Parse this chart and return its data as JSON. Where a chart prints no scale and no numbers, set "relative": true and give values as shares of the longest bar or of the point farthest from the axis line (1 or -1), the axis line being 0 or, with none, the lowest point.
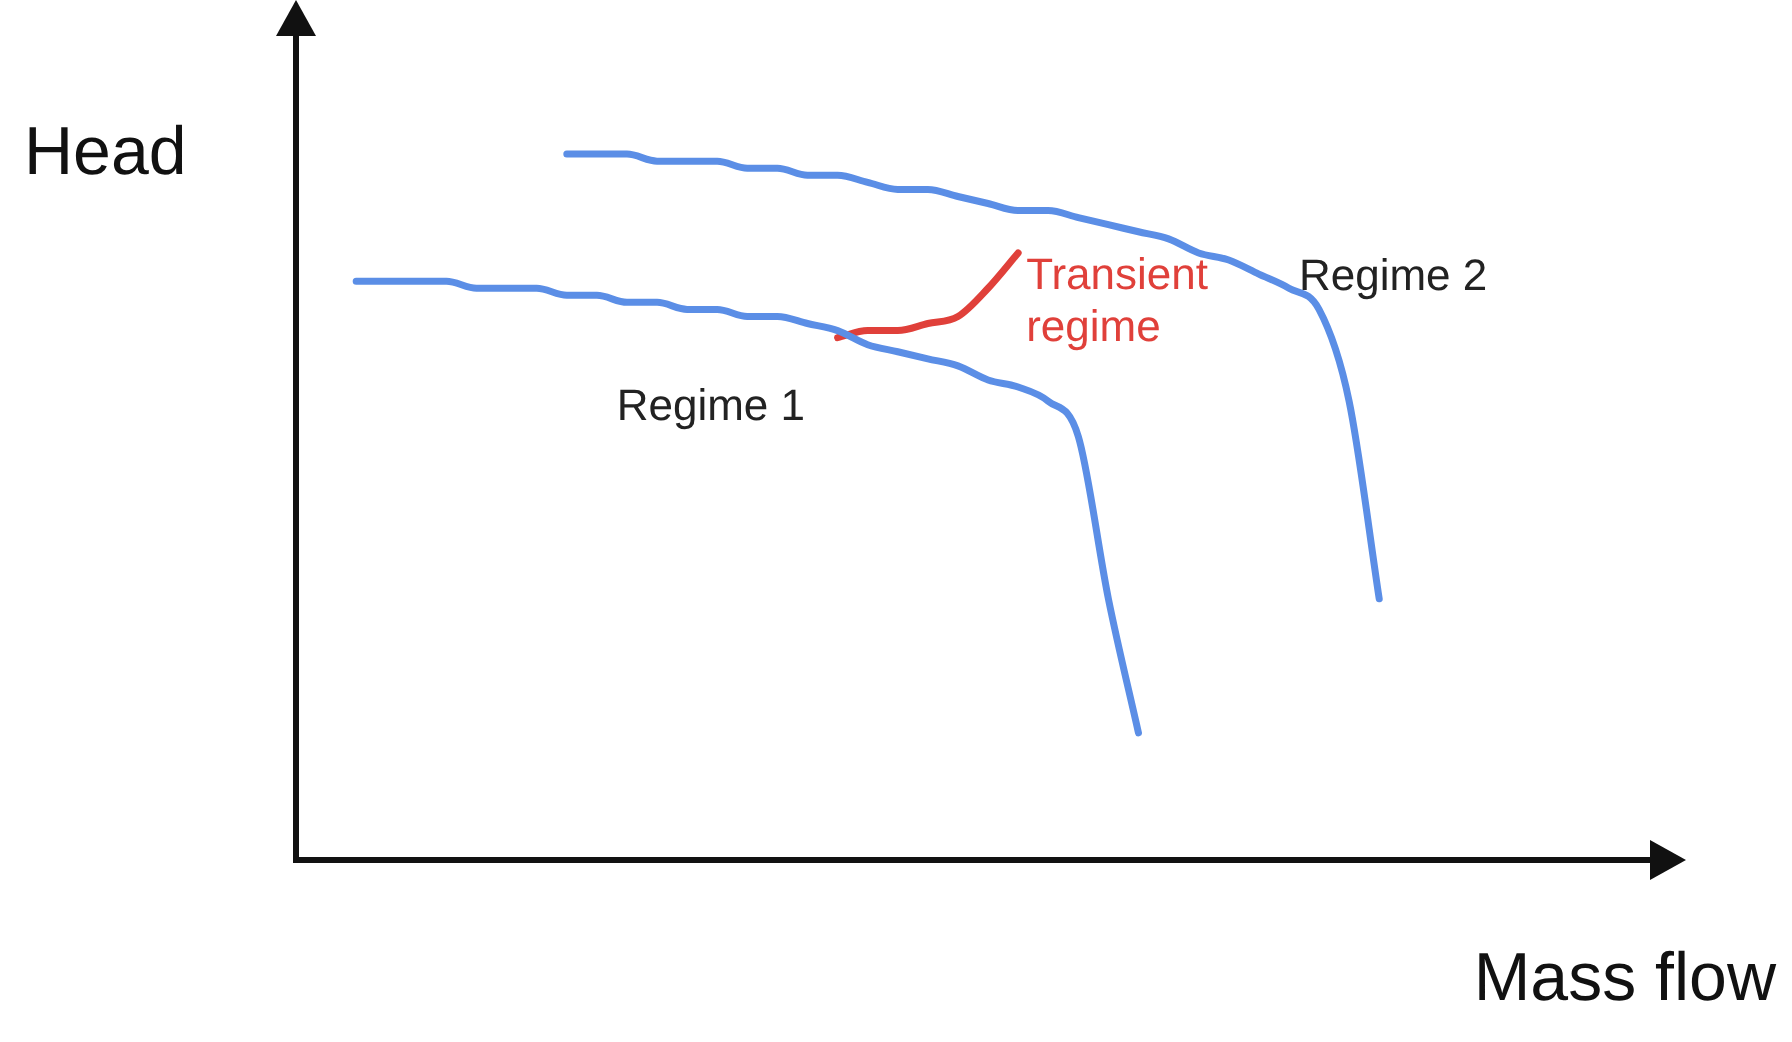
{
  "chart_data": {
    "type": "line",
    "relative": true,
    "xlabel": "Mass flow",
    "ylabel": "Head",
    "legend": false,
    "grid": false,
    "marker": "none",
    "line_style": "solid",
    "tick_labels": false,
    "categories": [
      null,
      null,
      null,
      null,
      null,
      null,
      null,
      null,
      null,
      null,
      null,
      null,
      null,
      null,
      null,
      null,
      null,
      null,
      null,
      null,
      null,
      null,
      null,
      null,
      null,
      null,
      null,
      null,
      null,
      null,
      null,
      null,
      null,
      null,
      null,
      null,
      null,
      null,
      null,
      null,
      null,
      null,
      null,
      null,
      null,
      null
    ],
    "series": [
      {
        "name": "Regime 1",
        "color": "#5b8ee6",
        "values": [
          null,
          null,
          0.82,
          0.82,
          0.82,
          0.82,
          0.81,
          0.81,
          0.81,
          0.8,
          0.8,
          0.79,
          0.79,
          0.78,
          0.78,
          0.77,
          0.77,
          0.76,
          0.75,
          0.73,
          0.72,
          0.71,
          0.7,
          0.68,
          0.67,
          0.65,
          0.6,
          0.37,
          0.18,
          null,
          null,
          null,
          null,
          null,
          null,
          null,
          null,
          null,
          null,
          null,
          null,
          null,
          null,
          null,
          null,
          null
        ]
      },
      {
        "name": "Regime 2",
        "color": "#5b8ee6",
        "values": [
          null,
          null,
          null,
          null,
          null,
          null,
          null,
          null,
          null,
          1.0,
          1.0,
          1.0,
          0.99,
          0.99,
          0.99,
          0.98,
          0.98,
          0.97,
          0.97,
          0.96,
          0.95,
          0.95,
          0.94,
          0.93,
          0.92,
          0.92,
          0.91,
          0.9,
          0.89,
          0.88,
          0.86,
          0.85,
          0.83,
          0.81,
          0.78,
          0.65,
          0.37,
          null,
          null,
          null,
          null,
          null,
          null,
          null,
          null,
          null
        ]
      },
      {
        "name": "Transient regime",
        "color": "#e0403a",
        "values": [
          null,
          null,
          null,
          null,
          null,
          null,
          null,
          null,
          null,
          null,
          null,
          null,
          null,
          null,
          null,
          null,
          null,
          null,
          0.74,
          0.75,
          0.75,
          0.76,
          0.77,
          0.81,
          0.86,
          null,
          null,
          null,
          null,
          null,
          null,
          null,
          null,
          null,
          null,
          null,
          null,
          null,
          null,
          null,
          null,
          null,
          null,
          null,
          null,
          null
        ]
      }
    ]
  }
}
